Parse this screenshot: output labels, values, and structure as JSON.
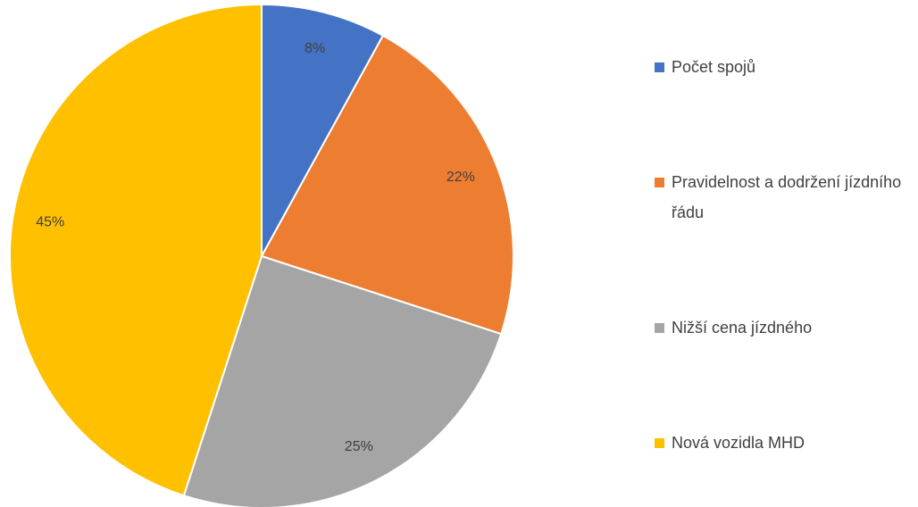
{
  "chart_data": {
    "type": "pie",
    "categories": [
      "Počet spojů",
      "Pravidelnost a dodržení jízdního řádu",
      "Nižší cena jízdného",
      "Nová vozidla MHD"
    ],
    "values": [
      8,
      22,
      25,
      45
    ],
    "value_labels": [
      "8%",
      "22%",
      "25%",
      "45%"
    ],
    "colors": [
      "#4472c4",
      "#ed7d31",
      "#a5a5a5",
      "#ffc000"
    ],
    "legend": "right"
  }
}
